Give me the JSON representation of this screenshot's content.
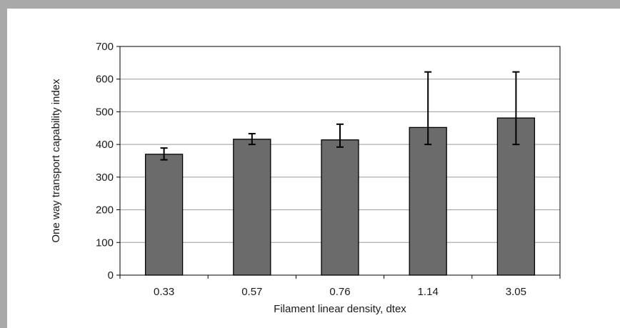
{
  "chart_data": {
    "type": "bar",
    "title": "",
    "xlabel": "Filament linear density, dtex",
    "ylabel": "One way transport capability index",
    "categories": [
      "0.33",
      "0.57",
      "0.76",
      "1.14",
      "3.05"
    ],
    "values": [
      370,
      416,
      414,
      452,
      481
    ],
    "error_high": [
      389,
      433,
      462,
      622,
      622
    ],
    "error_low": [
      353,
      400,
      392,
      400,
      400
    ],
    "ylim": [
      0,
      700
    ],
    "yticks": [
      0,
      100,
      200,
      300,
      400,
      500,
      600,
      700
    ],
    "grid": true,
    "legend": "none",
    "bar_color": "#6b6b6b",
    "bar_edge_color": "#000000",
    "grid_color": "#9a9a9a",
    "frame_color": "#a9a9a9"
  }
}
